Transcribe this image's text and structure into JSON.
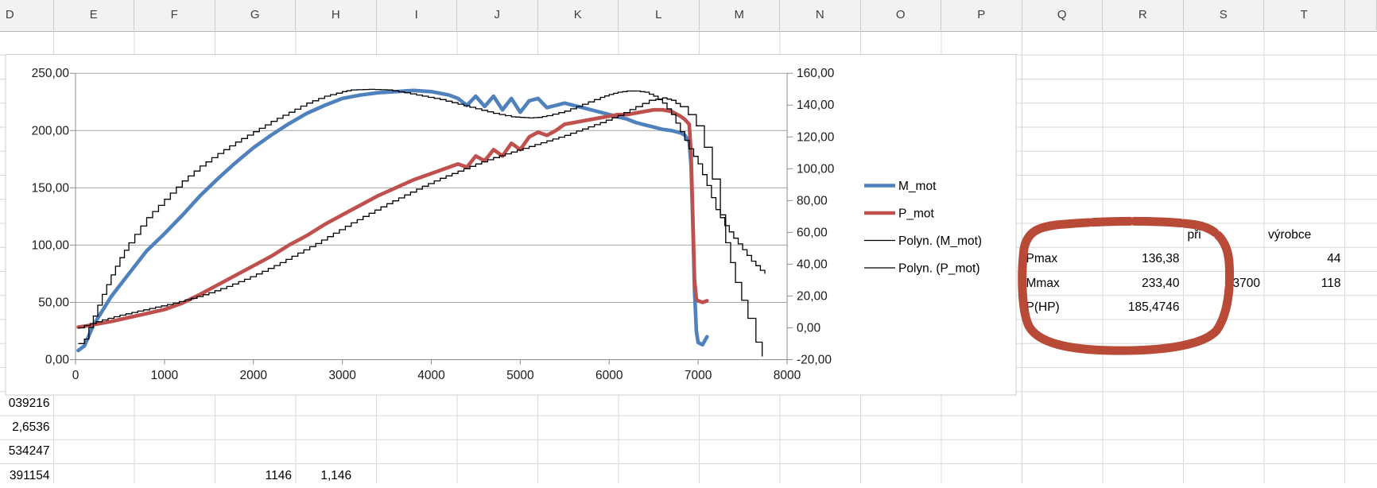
{
  "sheet": {
    "column_letters": [
      "D",
      "E",
      "F",
      "G",
      "H",
      "I",
      "J",
      "K",
      "L",
      "M",
      "N",
      "O",
      "P",
      "Q",
      "R",
      "S",
      "T",
      ""
    ],
    "cells": [
      {
        "col": "S",
        "row": 8,
        "text": "při",
        "align": "left"
      },
      {
        "col": "T",
        "row": 8,
        "text": "výrobce",
        "align": "left"
      },
      {
        "col": "Q",
        "row": 9,
        "text": "Pmax",
        "align": "left"
      },
      {
        "col": "R",
        "row": 9,
        "text": "136,38",
        "align": "right"
      },
      {
        "col": "T",
        "row": 9,
        "text": "44",
        "align": "right"
      },
      {
        "col": "Q",
        "row": 10,
        "text": "Mmax",
        "align": "left"
      },
      {
        "col": "R",
        "row": 10,
        "text": "233,40",
        "align": "right"
      },
      {
        "col": "S",
        "row": 10,
        "text": "3700",
        "align": "right"
      },
      {
        "col": "T",
        "row": 10,
        "text": "118",
        "align": "right"
      },
      {
        "col": "Q",
        "row": 11,
        "text": "P(HP)",
        "align": "left"
      },
      {
        "col": "R",
        "row": 11,
        "text": "185,4746",
        "align": "right"
      },
      {
        "col": "D",
        "row": 15,
        "text": "039216",
        "align": "right"
      },
      {
        "col": "D",
        "row": 16,
        "text": "2,6536",
        "align": "right"
      },
      {
        "col": "D",
        "row": 17,
        "text": "534247",
        "align": "right"
      },
      {
        "col": "D",
        "row": 18,
        "text": "391154",
        "align": "right"
      },
      {
        "col": "G",
        "row": 18,
        "text": "1146",
        "align": "right"
      },
      {
        "col": "H",
        "row": 18,
        "text": "1,146",
        "align": "center"
      }
    ]
  },
  "chart_data": {
    "type": "line",
    "title": "",
    "xlabel": "",
    "ylabel_left": "",
    "ylabel_right": "",
    "x_axis": {
      "min": 0,
      "max": 8000,
      "tick_labels": [
        "0",
        "1000",
        "2000",
        "3000",
        "4000",
        "5000",
        "6000",
        "7000",
        "8000"
      ]
    },
    "y_axis_left": {
      "min": 0,
      "max": 250,
      "tick_labels": [
        "250,00",
        "200,00",
        "150,00",
        "100,00",
        "50,00",
        "0,00"
      ]
    },
    "y_axis_right": {
      "min": -20,
      "max": 160,
      "tick_labels": [
        "160,00",
        "140,00",
        "120,00",
        "100,00",
        "80,00",
        "60,00",
        "40,00",
        "20,00",
        "0,00",
        "-20,00"
      ]
    },
    "grid": "horizontal-major",
    "legend_position": "right",
    "series": [
      {
        "name": "M_mot",
        "axis": "left",
        "color": "#4f81bd",
        "style": "thick",
        "points": [
          [
            30,
            8
          ],
          [
            100,
            12
          ],
          [
            200,
            30
          ],
          [
            400,
            55
          ],
          [
            600,
            75
          ],
          [
            800,
            95
          ],
          [
            1000,
            110
          ],
          [
            1200,
            126
          ],
          [
            1400,
            143
          ],
          [
            1600,
            158
          ],
          [
            1800,
            172
          ],
          [
            2000,
            185
          ],
          [
            2200,
            196
          ],
          [
            2400,
            206
          ],
          [
            2600,
            215
          ],
          [
            2800,
            222
          ],
          [
            3000,
            228
          ],
          [
            3200,
            231
          ],
          [
            3400,
            233
          ],
          [
            3600,
            234
          ],
          [
            3800,
            235
          ],
          [
            4000,
            234
          ],
          [
            4200,
            231
          ],
          [
            4300,
            228
          ],
          [
            4400,
            222
          ],
          [
            4500,
            230
          ],
          [
            4600,
            221
          ],
          [
            4700,
            230
          ],
          [
            4800,
            218
          ],
          [
            4900,
            228
          ],
          [
            5000,
            216
          ],
          [
            5100,
            226
          ],
          [
            5200,
            228
          ],
          [
            5300,
            220
          ],
          [
            5400,
            222
          ],
          [
            5500,
            224
          ],
          [
            5600,
            222
          ],
          [
            5700,
            220
          ],
          [
            5800,
            218
          ],
          [
            5900,
            216
          ],
          [
            6000,
            214
          ],
          [
            6100,
            212
          ],
          [
            6200,
            210
          ],
          [
            6300,
            207
          ],
          [
            6400,
            205
          ],
          [
            6500,
            203
          ],
          [
            6600,
            201
          ],
          [
            6700,
            200
          ],
          [
            6800,
            198
          ],
          [
            6850,
            196
          ],
          [
            6900,
            190
          ],
          [
            6920,
            170
          ],
          [
            6940,
            120
          ],
          [
            6960,
            60
          ],
          [
            6980,
            25
          ],
          [
            7000,
            15
          ],
          [
            7050,
            13
          ],
          [
            7100,
            20
          ]
        ]
      },
      {
        "name": "P_mot",
        "axis": "right",
        "color": "#c0504d",
        "style": "thick",
        "points": [
          [
            30,
            0.5
          ],
          [
            100,
            1
          ],
          [
            200,
            2
          ],
          [
            400,
            4
          ],
          [
            600,
            6.5
          ],
          [
            800,
            9
          ],
          [
            1000,
            11.5
          ],
          [
            1200,
            15.5
          ],
          [
            1400,
            21
          ],
          [
            1600,
            27
          ],
          [
            1800,
            33
          ],
          [
            2000,
            39
          ],
          [
            2200,
            45
          ],
          [
            2400,
            52
          ],
          [
            2600,
            58
          ],
          [
            2800,
            65
          ],
          [
            3000,
            71
          ],
          [
            3200,
            77
          ],
          [
            3400,
            83
          ],
          [
            3600,
            88
          ],
          [
            3800,
            93
          ],
          [
            4000,
            97
          ],
          [
            4200,
            101
          ],
          [
            4300,
            103
          ],
          [
            4400,
            101
          ],
          [
            4500,
            108
          ],
          [
            4600,
            105
          ],
          [
            4700,
            112
          ],
          [
            4800,
            108
          ],
          [
            4900,
            116
          ],
          [
            5000,
            112
          ],
          [
            5100,
            120
          ],
          [
            5200,
            123
          ],
          [
            5300,
            121
          ],
          [
            5400,
            124
          ],
          [
            5500,
            128
          ],
          [
            5600,
            129
          ],
          [
            5700,
            130
          ],
          [
            5800,
            131
          ],
          [
            5900,
            132
          ],
          [
            6000,
            133
          ],
          [
            6100,
            134
          ],
          [
            6200,
            134
          ],
          [
            6300,
            135
          ],
          [
            6400,
            136
          ],
          [
            6500,
            137
          ],
          [
            6600,
            137
          ],
          [
            6700,
            136
          ],
          [
            6800,
            133
          ],
          [
            6850,
            131
          ],
          [
            6900,
            128
          ],
          [
            6920,
            110
          ],
          [
            6940,
            70
          ],
          [
            6960,
            30
          ],
          [
            6980,
            18
          ],
          [
            7000,
            17
          ],
          [
            7050,
            16
          ],
          [
            7100,
            17
          ]
        ]
      },
      {
        "name": "Polyn. (M_mot)",
        "axis": "left",
        "color": "#000000",
        "style": "fit",
        "points": [
          [
            30,
            14
          ],
          [
            100,
            18
          ],
          [
            200,
            38
          ],
          [
            300,
            57
          ],
          [
            400,
            74
          ],
          [
            500,
            89
          ],
          [
            600,
            102
          ],
          [
            800,
            124
          ],
          [
            1000,
            140
          ],
          [
            1200,
            156
          ],
          [
            1400,
            169
          ],
          [
            1600,
            180
          ],
          [
            1800,
            190
          ],
          [
            2000,
            199
          ],
          [
            2200,
            208
          ],
          [
            2400,
            216
          ],
          [
            2600,
            224
          ],
          [
            2800,
            230
          ],
          [
            3000,
            234
          ],
          [
            3100,
            235.5
          ],
          [
            3300,
            236
          ],
          [
            3500,
            235.5
          ],
          [
            3700,
            233
          ],
          [
            3900,
            230
          ],
          [
            4100,
            227
          ],
          [
            4300,
            223
          ],
          [
            4500,
            219
          ],
          [
            4700,
            215
          ],
          [
            4900,
            212
          ],
          [
            5000,
            211.5
          ],
          [
            5100,
            211
          ],
          [
            5200,
            211.5
          ],
          [
            5300,
            213
          ],
          [
            5500,
            217
          ],
          [
            5700,
            223
          ],
          [
            5900,
            229
          ],
          [
            6000,
            231.5
          ],
          [
            6100,
            233.5
          ],
          [
            6200,
            234.5
          ],
          [
            6300,
            234.5
          ],
          [
            6400,
            233.5
          ],
          [
            6500,
            230
          ],
          [
            6600,
            224
          ],
          [
            6700,
            214
          ],
          [
            6800,
            199
          ],
          [
            6900,
            184
          ],
          [
            7000,
            171
          ],
          [
            7100,
            152
          ],
          [
            7200,
            131
          ],
          [
            7300,
            117
          ],
          [
            7400,
            106
          ],
          [
            7500,
            96
          ],
          [
            7600,
            86
          ],
          [
            7700,
            78
          ],
          [
            7750,
            75
          ]
        ]
      },
      {
        "name": "Polyn. (P_mot)",
        "axis": "right",
        "color": "#000000",
        "style": "fit",
        "points": [
          [
            30,
            0
          ],
          [
            100,
            1.5
          ],
          [
            300,
            5
          ],
          [
            500,
            8
          ],
          [
            700,
            10.5
          ],
          [
            900,
            13
          ],
          [
            1100,
            15.5
          ],
          [
            1300,
            18.5
          ],
          [
            1500,
            22
          ],
          [
            1700,
            26
          ],
          [
            1900,
            30.5
          ],
          [
            2100,
            35.5
          ],
          [
            2300,
            41
          ],
          [
            2500,
            47
          ],
          [
            2700,
            53
          ],
          [
            2900,
            59.5
          ],
          [
            3100,
            66
          ],
          [
            3300,
            72
          ],
          [
            3500,
            78
          ],
          [
            3700,
            83.5
          ],
          [
            3900,
            89
          ],
          [
            4100,
            94
          ],
          [
            4300,
            98.5
          ],
          [
            4500,
            103
          ],
          [
            4700,
            107
          ],
          [
            4900,
            110.5
          ],
          [
            5100,
            114
          ],
          [
            5300,
            117.5
          ],
          [
            5500,
            121
          ],
          [
            5700,
            125
          ],
          [
            5900,
            129
          ],
          [
            6100,
            133.5
          ],
          [
            6300,
            139
          ],
          [
            6450,
            143
          ],
          [
            6600,
            144.5
          ],
          [
            6700,
            143
          ],
          [
            6800,
            139
          ],
          [
            6890,
            134
          ],
          [
            6980,
            127
          ],
          [
            7070,
            113.5
          ],
          [
            7160,
            93.5
          ],
          [
            7250,
            71
          ],
          [
            7310,
            53.5
          ],
          [
            7420,
            28.5
          ],
          [
            7560,
            6
          ],
          [
            7650,
            -9
          ],
          [
            7720,
            -18
          ]
        ]
      }
    ],
    "annotations": [
      {
        "type": "hand-drawn-circle",
        "around": "Pmax/Mmax/P(HP) result cells",
        "color": "#b5402c"
      }
    ]
  },
  "colors": {
    "series_blue": "#4f81bd",
    "series_red": "#c0504d",
    "fit_black": "#000000",
    "marker_circle": "#b5402c",
    "grid_minor": "#d8d8d8",
    "chart_gridline": "#a6a6a6",
    "axis_line": "#8c8c8c",
    "header_bg": "#f2f2f2"
  }
}
